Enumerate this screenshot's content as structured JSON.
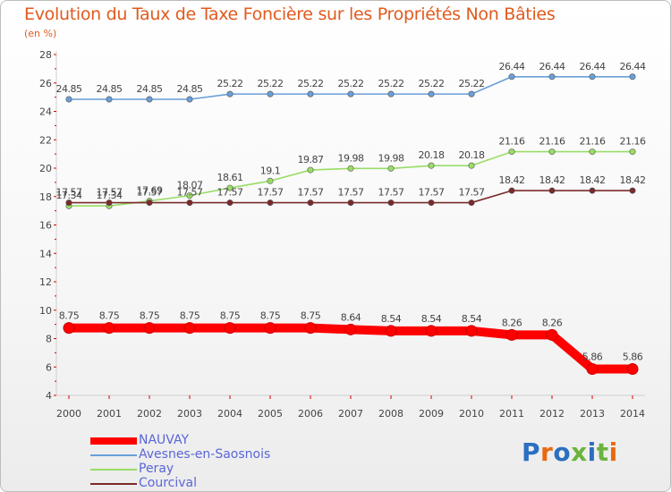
{
  "chart_data": {
    "type": "line",
    "title": "Evolution du Taux de Taxe Foncière sur les Propriétés Non Bâties",
    "unit_label": "(en %)",
    "xlabel": "",
    "ylabel": "",
    "ylim": [
      4,
      28
    ],
    "yticks": [
      "4",
      "6",
      "8",
      "10",
      "12",
      "14",
      "16",
      "18",
      "20",
      "22",
      "24",
      "26",
      "28"
    ],
    "categories": [
      "2000",
      "2001",
      "2002",
      "2003",
      "2004",
      "2005",
      "2006",
      "2007",
      "2008",
      "2009",
      "2010",
      "2011",
      "2012",
      "2013",
      "2014"
    ],
    "series": [
      {
        "name": "NAUVAY",
        "color": "#ff0000",
        "values": [
          8.75,
          8.75,
          8.75,
          8.75,
          8.75,
          8.75,
          8.75,
          8.64,
          8.54,
          8.54,
          8.54,
          8.26,
          8.26,
          5.86,
          5.86
        ],
        "labels": [
          "8.75",
          "8.75",
          "8.75",
          "8.75",
          "8.75",
          "8.75",
          "8.75",
          "8.64",
          "8.54",
          "8.54",
          "8.54",
          "8.26",
          "8.26",
          "5.86",
          "5.86"
        ]
      },
      {
        "name": "Avesnes-en-Saosnois",
        "color": "#6a9fd8",
        "values": [
          24.85,
          24.85,
          24.85,
          24.85,
          25.22,
          25.22,
          25.22,
          25.22,
          25.22,
          25.22,
          25.22,
          26.44,
          26.44,
          26.44,
          26.44
        ],
        "labels": [
          "24.85",
          "24.85",
          "24.85",
          "24.85",
          "25.22",
          "25.22",
          "25.22",
          "25.22",
          "25.22",
          "25.22",
          "25.22",
          "26.44",
          "26.44",
          "26.44",
          "26.44"
        ]
      },
      {
        "name": "Peray",
        "color": "#99dd66",
        "values": [
          17.34,
          17.34,
          17.69,
          18.07,
          18.61,
          19.1,
          19.87,
          19.98,
          19.98,
          20.18,
          20.18,
          21.16,
          21.16,
          21.16,
          21.16
        ],
        "labels": [
          "17.34",
          "17.34",
          "17.69",
          "18.07",
          "18.61",
          "19.1",
          "19.87",
          "19.98",
          "19.98",
          "20.18",
          "20.18",
          "21.16",
          "21.16",
          "21.16",
          "21.16"
        ]
      },
      {
        "name": "Courcival",
        "color": "#7a2a2a",
        "values": [
          17.57,
          17.57,
          17.57,
          17.57,
          17.57,
          17.57,
          17.57,
          17.57,
          17.57,
          17.57,
          17.57,
          18.42,
          18.42,
          18.42,
          18.42
        ],
        "labels": [
          "17.57",
          "17.57",
          "17.57",
          "17.57",
          "17.57",
          "17.57",
          "17.57",
          "17.57",
          "17.57",
          "17.57",
          "17.57",
          "18.42",
          "18.42",
          "18.42",
          "18.42"
        ]
      }
    ],
    "legend_position": "bottom-left",
    "grid": false
  },
  "logo": {
    "text": "Proxiti",
    "colors": [
      "#2b6fc0",
      "#e86a10",
      "#2b6fc0",
      "#6cb33f",
      "#2b6fc0",
      "#6cb33f",
      "#e86a10"
    ]
  }
}
